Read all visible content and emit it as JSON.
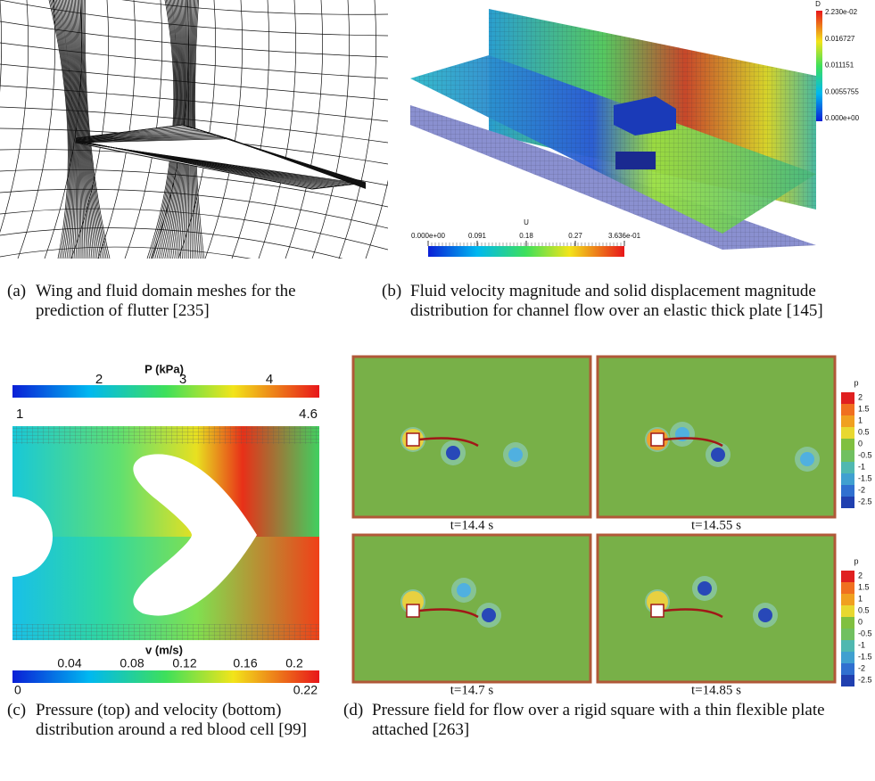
{
  "panels": [
    {
      "label": "(a)",
      "caption": "Wing and fluid domain meshes for the prediction of flutter [235]"
    },
    {
      "label": "(b)",
      "caption": "Fluid velocity magnitude and solid displacement magnitude distribution for channel flow over an elastic thick plate [145]",
      "velocity_bar": {
        "title": "U",
        "ticks": [
          "0.000e+00",
          "0.091",
          "0.18",
          "0.27",
          "3.636e-01"
        ]
      },
      "displacement_bar": {
        "title": "D",
        "ticks": [
          "2.230e-02",
          "0.016727",
          "0.011151",
          "0.0055755",
          "0.000e+00"
        ]
      }
    },
    {
      "label": "(c)",
      "caption": "Pressure (top) and velocity (bottom) distribution around a red blood cell [99]",
      "pressure_bar": {
        "title": "P (kPa)",
        "ticks": [
          "2",
          "3",
          "4"
        ],
        "min": "1",
        "max": "4.6"
      },
      "velocity_bar": {
        "title": "v (m/s)",
        "ticks": [
          "0.04",
          "0.08",
          "0.12",
          "0.16",
          "0.2"
        ],
        "min": "0",
        "max": "0.22"
      }
    },
    {
      "label": "(d)",
      "caption": "Pressure field for flow over a rigid square with a thin flexible plate attached [263]",
      "frames": [
        "t=14.4 s",
        "t=14.55 s",
        "t=14.7 s",
        "t=14.85 s"
      ],
      "legend": {
        "title": "p",
        "ticks": [
          "2",
          "1.5",
          "1",
          "0.5",
          "0",
          "-0.5",
          "-1",
          "-1.5",
          "-2",
          "-2.5"
        ]
      }
    }
  ]
}
